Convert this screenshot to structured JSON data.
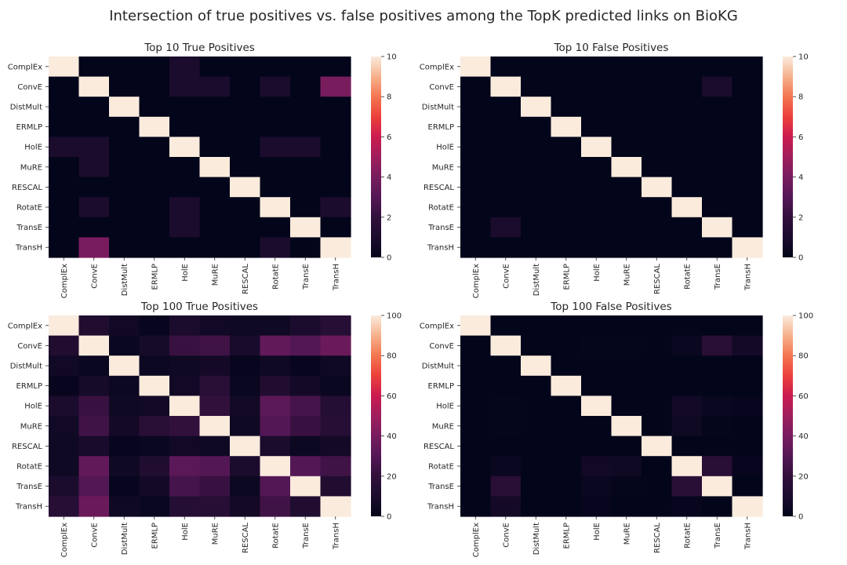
{
  "figure_title": "Intersection of true positives vs. false positives among the TopK predicted links on BioKG",
  "colormap": "rocket",
  "chart_data": [
    {
      "type": "heatmap",
      "title": "Top 10 True Positives",
      "categories": [
        "ComplEx",
        "ConvE",
        "DistMult",
        "ERMLP",
        "HolE",
        "MuRE",
        "RESCAL",
        "RotatE",
        "TransE",
        "TransH"
      ],
      "vmin": 0,
      "vmax": 10,
      "colorbar_ticks": [
        0,
        2,
        4,
        6,
        8,
        10
      ],
      "values": [
        [
          10,
          0,
          0,
          0,
          1,
          0,
          0,
          0,
          0,
          0
        ],
        [
          0,
          10,
          0,
          0,
          1,
          1,
          0,
          1,
          0,
          4
        ],
        [
          0,
          0,
          10,
          0,
          0,
          0,
          0,
          0,
          0,
          0
        ],
        [
          0,
          0,
          0,
          10,
          0,
          0,
          0,
          0,
          0,
          0
        ],
        [
          1,
          1,
          0,
          0,
          10,
          0,
          0,
          1,
          1,
          0
        ],
        [
          0,
          1,
          0,
          0,
          0,
          10,
          0,
          0,
          0,
          0
        ],
        [
          0,
          0,
          0,
          0,
          0,
          0,
          10,
          0,
          0,
          0
        ],
        [
          0,
          1,
          0,
          0,
          1,
          0,
          0,
          10,
          0,
          1
        ],
        [
          0,
          0,
          0,
          0,
          1,
          0,
          0,
          0,
          10,
          0
        ],
        [
          0,
          4,
          0,
          0,
          0,
          0,
          0,
          1,
          0,
          10
        ]
      ]
    },
    {
      "type": "heatmap",
      "title": "Top 10 False Positives",
      "categories": [
        "ComplEx",
        "ConvE",
        "DistMult",
        "ERMLP",
        "HolE",
        "MuRE",
        "RESCAL",
        "RotatE",
        "TransE",
        "TransH"
      ],
      "vmin": 0,
      "vmax": 10,
      "colorbar_ticks": [
        0,
        2,
        4,
        6,
        8,
        10
      ],
      "values": [
        [
          10,
          0,
          0,
          0,
          0,
          0,
          0,
          0,
          0,
          0
        ],
        [
          0,
          10,
          0,
          0,
          0,
          0,
          0,
          0,
          1,
          0
        ],
        [
          0,
          0,
          10,
          0,
          0,
          0,
          0,
          0,
          0,
          0
        ],
        [
          0,
          0,
          0,
          10,
          0,
          0,
          0,
          0,
          0,
          0
        ],
        [
          0,
          0,
          0,
          0,
          10,
          0,
          0,
          0,
          0,
          0
        ],
        [
          0,
          0,
          0,
          0,
          0,
          10,
          0,
          0,
          0,
          0
        ],
        [
          0,
          0,
          0,
          0,
          0,
          0,
          10,
          0,
          0,
          0
        ],
        [
          0,
          0,
          0,
          0,
          0,
          0,
          0,
          10,
          0,
          0
        ],
        [
          0,
          1,
          0,
          0,
          0,
          0,
          0,
          0,
          10,
          0
        ],
        [
          0,
          0,
          0,
          0,
          0,
          0,
          0,
          0,
          0,
          10
        ]
      ]
    },
    {
      "type": "heatmap",
      "title": "Top 100 True Positives",
      "categories": [
        "ComplEx",
        "ConvE",
        "DistMult",
        "ERMLP",
        "HolE",
        "MuRE",
        "RESCAL",
        "RotatE",
        "TransE",
        "TransH"
      ],
      "vmin": 0,
      "vmax": 100,
      "colorbar_ticks": [
        0,
        20,
        40,
        60,
        80,
        100
      ],
      "values": [
        [
          100,
          12,
          6,
          2,
          10,
          6,
          5,
          5,
          10,
          15
        ],
        [
          12,
          100,
          3,
          8,
          22,
          24,
          9,
          34,
          30,
          36
        ],
        [
          6,
          3,
          100,
          4,
          5,
          7,
          2,
          5,
          2,
          5
        ],
        [
          2,
          8,
          4,
          100,
          6,
          16,
          3,
          12,
          7,
          3
        ],
        [
          10,
          22,
          5,
          6,
          100,
          20,
          6,
          32,
          26,
          14
        ],
        [
          6,
          24,
          7,
          16,
          20,
          100,
          5,
          30,
          22,
          15
        ],
        [
          5,
          9,
          2,
          3,
          6,
          5,
          100,
          10,
          4,
          7
        ],
        [
          5,
          34,
          5,
          12,
          32,
          30,
          10,
          100,
          30,
          24
        ],
        [
          10,
          30,
          2,
          7,
          26,
          22,
          4,
          30,
          100,
          12
        ],
        [
          15,
          36,
          5,
          3,
          14,
          15,
          7,
          24,
          12,
          100
        ]
      ]
    },
    {
      "type": "heatmap",
      "title": "Top 100 False Positives",
      "categories": [
        "ComplEx",
        "ConvE",
        "DistMult",
        "ERMLP",
        "HolE",
        "MuRE",
        "RESCAL",
        "RotatE",
        "TransE",
        "TransH"
      ],
      "vmin": 0,
      "vmax": 100,
      "colorbar_ticks": [
        0,
        20,
        40,
        60,
        80,
        100
      ],
      "values": [
        [
          100,
          0,
          0,
          0,
          0,
          0,
          0,
          0,
          0,
          0
        ],
        [
          0,
          100,
          0,
          0,
          1,
          1,
          0,
          3,
          16,
          7
        ],
        [
          0,
          0,
          100,
          0,
          0,
          0,
          0,
          0,
          0,
          0
        ],
        [
          0,
          0,
          0,
          100,
          0,
          0,
          0,
          0,
          0,
          0
        ],
        [
          0,
          1,
          0,
          0,
          100,
          0,
          0,
          6,
          3,
          2
        ],
        [
          0,
          1,
          0,
          0,
          0,
          100,
          0,
          5,
          1,
          0
        ],
        [
          0,
          0,
          0,
          0,
          0,
          0,
          100,
          0,
          0,
          0
        ],
        [
          0,
          3,
          0,
          0,
          6,
          5,
          0,
          100,
          16,
          2
        ],
        [
          0,
          16,
          0,
          0,
          3,
          1,
          0,
          16,
          100,
          0
        ],
        [
          0,
          7,
          0,
          0,
          2,
          0,
          0,
          2,
          0,
          100
        ]
      ]
    }
  ]
}
